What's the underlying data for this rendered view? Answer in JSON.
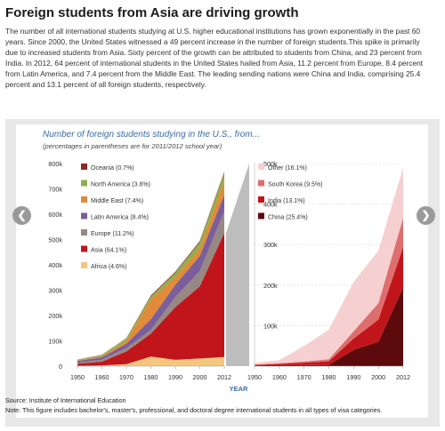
{
  "header": {
    "title": "Foreign students from Asia are driving growth",
    "intro": "The number of all international students studying at U.S. higher educational institutions has grown exponentially in the past 60 years. Since 2000, the United States witnessed a 49 percent increase in the number of foreign students.This spike is primarily due to increased students from Asia. Sixty percent of the growth can be attributed to students from China, and 23 percent from India. In 2012, 64 percent of international students in the United States hailed from Asia, 11.2 percent from Europe, 8.4 percent from Latin America, and 7.4 percent from the Middle East. The leading sending nations were China and India, comprising 25.4 percent and 13.1 percent of all foreign students, respectively."
  },
  "chart": {
    "title": "Number of foreign students studying in the U.S., from...",
    "subtitle": "(percentages in parentheses are for 2011/2012 school year)",
    "xlabel": "YEAR"
  },
  "nav": {
    "prev_icon": "❮",
    "next_icon": "❯"
  },
  "footer": {
    "source": "Source: Institute of International Education",
    "note": "Note: This figure includes bachelor's, master's, professional, and doctoral degree international students in all types of visa categories."
  },
  "chart_data": [
    {
      "type": "area",
      "stacked": true,
      "x": [
        1950,
        1960,
        1970,
        1980,
        1990,
        2000,
        2012
      ],
      "ylim": [
        0,
        800000
      ],
      "yticks": [
        "0",
        "100k",
        "200k",
        "300k",
        "400k",
        "500k",
        "600k",
        "700k",
        "800k"
      ],
      "xticks": [
        "1950",
        "1960",
        "1970",
        "1980",
        "1990",
        "2000",
        "2012"
      ],
      "legend_position": "top-left",
      "series": [
        {
          "name": "Africa (4.6%)",
          "color": "#f5c77e",
          "values": [
            1500,
            2500,
            8000,
            38000,
            25000,
            30000,
            36000
          ]
        },
        {
          "name": "Asia (64.1%)",
          "color": "#c0161b",
          "values": [
            8000,
            15000,
            50000,
            90000,
            208000,
            285000,
            490000
          ]
        },
        {
          "name": "Europe (11.2%)",
          "color": "#978883",
          "values": [
            4000,
            8000,
            14000,
            15000,
            40000,
            60000,
            86000
          ]
        },
        {
          "name": "Latin America (8.4%)",
          "color": "#7b5e9b",
          "values": [
            7000,
            9500,
            16000,
            42000,
            48000,
            60000,
            64000
          ]
        },
        {
          "name": "Middle East (7.4%)",
          "color": "#e08a3a",
          "values": [
            2000,
            4000,
            12000,
            78000,
            30000,
            30000,
            57000
          ]
        },
        {
          "name": "North America (3.8%)",
          "color": "#8db04a",
          "values": [
            3000,
            5000,
            10000,
            12000,
            18000,
            25000,
            29000
          ]
        },
        {
          "name": "Oceania (0.7%)",
          "color": "#8c2a25",
          "values": [
            500,
            500,
            1000,
            4000,
            4000,
            4500,
            5000
          ]
        }
      ]
    },
    {
      "type": "area",
      "stacked": true,
      "x": [
        1950,
        1960,
        1970,
        1980,
        1990,
        2000,
        2012
      ],
      "ylim": [
        0,
        500000
      ],
      "yticks": [
        "100k",
        "200k",
        "300k",
        "400k",
        "500k"
      ],
      "xticks": [
        "1950",
        "1960",
        "1970",
        "1980",
        "1990",
        "2000",
        "2012"
      ],
      "legend_position": "top-left",
      "series": [
        {
          "name": "China (25.4%)",
          "color": "#5c0a0c",
          "values": [
            2000,
            2500,
            2500,
            3000,
            40000,
            60000,
            194000
          ]
        },
        {
          "name": "India (13.1%)",
          "color": "#c0161b",
          "values": [
            1000,
            3000,
            6000,
            9000,
            28000,
            55000,
            100000
          ]
        },
        {
          "name": "South Korea (9.5%)",
          "color": "#de6e6e",
          "values": [
            500,
            1500,
            3000,
            5000,
            18000,
            40000,
            72000
          ]
        },
        {
          "name": "Other (16.1%)",
          "color": "#f6d0d0",
          "values": [
            4500,
            8000,
            38500,
            73000,
            122000,
            130000,
            124000
          ]
        }
      ]
    }
  ]
}
